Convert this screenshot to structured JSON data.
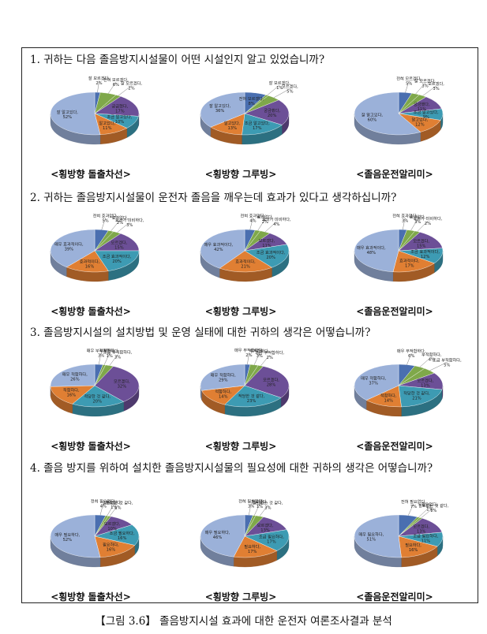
{
  "colors": [
    "#4a6fb0",
    "#7fa84a",
    "#6c4f97",
    "#3d9bb3",
    "#e07f33",
    "#9bb1d9"
  ],
  "questions": [
    {
      "text": "1. 귀하는 다음 졸음방지시설물이 어떤 시설인지 알고 있었습니까?"
    },
    {
      "text": "2. 귀하는 졸음방지시설물이 운전자 졸음을 깨우는데 효과가 있다고 생각하십니까?"
    },
    {
      "text": "3. 졸음방지시설의 설치방법 및 운영 실태에 대한 귀하의 생각은 어떻습니까?"
    },
    {
      "text": "4. 졸음 방지를 위하여 설치한 졸음방지시설물의 필요성에 대한 귀하의 생각은 어떻습니까?"
    }
  ],
  "caption": "【그림 3.6】 졸음방지시설 효과에 대한 운전자 여론조사결과 분석",
  "chart_data": [
    {
      "type": "pie",
      "title": "<횡방향 돌출차선>",
      "slices": [
        {
          "label": "잘 모르겠다,",
          "pct": "2%",
          "value": 2
        },
        {
          "label": "전혀 모르겠다,",
          "pct": "6%",
          "value": 6
        },
        {
          "label": "잘 모르겠다,",
          "pct": "2%",
          "value": 2
        },
        {
          "label": "궁금했다,",
          "pct": "17%",
          "value": 17
        },
        {
          "label": "조금 알고있다,",
          "pct": "10%",
          "value": 10
        },
        {
          "label": "알고있다,",
          "pct": "11%",
          "value": 11
        },
        {
          "label": "잘 알고있다,",
          "pct": "52%",
          "value": 52
        }
      ]
    },
    {
      "type": "pie",
      "title": "<횡방향 그루빙>",
      "slices": [
        {
          "label": "전혀 모르겠다,",
          "pct": "8%",
          "value": 8
        },
        {
          "label": "잘 모르겠다,",
          "pct": "1%",
          "value": 1
        },
        {
          "label": "모르겠다,",
          "pct": "5%",
          "value": 5
        },
        {
          "label": "궁금했다,",
          "pct": "20%",
          "value": 20
        },
        {
          "label": "조금 알고있다,",
          "pct": "17%",
          "value": 17
        },
        {
          "label": "알고있다,",
          "pct": "13%",
          "value": 13
        },
        {
          "label": "잘 알고있다,",
          "pct": "36%",
          "value": 36
        }
      ]
    },
    {
      "type": "pie",
      "title": "<졸음운전알리미>",
      "slices": [
        {
          "label": "전혀 모르겠다,",
          "pct": "5%",
          "value": 5
        },
        {
          "label": "잘 모르겠다,",
          "pct": "3%",
          "value": 3
        },
        {
          "label": "모르겠다,",
          "pct": "3%",
          "value": 3
        },
        {
          "label": "궁금했다,",
          "pct": "11%",
          "value": 11
        },
        {
          "label": "조금 알고있다,",
          "pct": "9%",
          "value": 9
        },
        {
          "label": "알고있다,",
          "pct": "12%",
          "value": 12
        },
        {
          "label": "잘 알고있다,",
          "pct": "60%",
          "value": 60
        }
      ]
    },
    {
      "type": "pie",
      "title": "<횡방향 돌출차선>",
      "slices": [
        {
          "label": "전혀 효과없다,",
          "pct": "5%",
          "value": 5
        },
        {
          "label": "효과없다,",
          "pct": "2%",
          "value": 2
        },
        {
          "label": "효과가 미비하다,",
          "pct": "3%",
          "value": 3
        },
        {
          "label": "모르겠다,",
          "pct": "15%",
          "value": 15
        },
        {
          "label": "조금 효과적이다,",
          "pct": "20%",
          "value": 20
        },
        {
          "label": "효과적이다,",
          "pct": "16%",
          "value": 16
        },
        {
          "label": "매우 효과적이다,",
          "pct": "39%",
          "value": 39
        }
      ]
    },
    {
      "type": "pie",
      "title": "<횡방향 그루빙>",
      "slices": [
        {
          "label": "전혀 효과없다,",
          "pct": "4%",
          "value": 4
        },
        {
          "label": "효과없다,",
          "pct": "2%",
          "value": 2
        },
        {
          "label": "효과가 미비하다,",
          "pct": "4%",
          "value": 4
        },
        {
          "label": "모르겠다,",
          "pct": "11%",
          "value": 11
        },
        {
          "label": "조금 효과적이다,",
          "pct": "20%",
          "value": 20
        },
        {
          "label": "효과적이다,",
          "pct": "21%",
          "value": 21
        },
        {
          "label": "매우 효과적이다,",
          "pct": "42%",
          "value": 42
        }
      ]
    },
    {
      "type": "pie",
      "title": "<졸음운전알리미>",
      "slices": [
        {
          "label": "전혀 효과없다,",
          "pct": "3%",
          "value": 3
        },
        {
          "label": "효과없다,",
          "pct": "3%",
          "value": 3
        },
        {
          "label": "효과가 미비하다,",
          "pct": "2%",
          "value": 2
        },
        {
          "label": "모르겠다,",
          "pct": "15%",
          "value": 15
        },
        {
          "label": "조금 효과적이다,",
          "pct": "12%",
          "value": 12
        },
        {
          "label": "효과적이다,",
          "pct": "17%",
          "value": 17
        },
        {
          "label": "매우 효과적이다,",
          "pct": "48%",
          "value": 48
        }
      ]
    },
    {
      "type": "pie",
      "title": "<횡방향 돌출차선>",
      "slices": [
        {
          "label": "매우 부적합하다,",
          "pct": "3%",
          "value": 3
        },
        {
          "label": "부적합하다,",
          "pct": "1%",
          "value": 1
        },
        {
          "label": "조금 부적합하다,",
          "pct": "3%",
          "value": 3
        },
        {
          "label": "모르겠다,",
          "pct": "32%",
          "value": 32
        },
        {
          "label": "적당한 것 같다,",
          "pct": "20%",
          "value": 20
        },
        {
          "label": "적합하다,",
          "pct": "16%",
          "value": 16
        },
        {
          "label": "매우 적합하다,",
          "pct": "26%",
          "value": 26
        }
      ]
    },
    {
      "type": "pie",
      "title": "<횡방향 그루빙>",
      "slices": [
        {
          "label": "매우 부적합하다,",
          "pct": "2%",
          "value": 2
        },
        {
          "label": "부적합하다,",
          "pct": "3%",
          "value": 3
        },
        {
          "label": "조금 부적합하다,",
          "pct": "2%",
          "value": 2
        },
        {
          "label": "모르겠다,",
          "pct": "28%",
          "value": 28
        },
        {
          "label": "적당한 것 같다,",
          "pct": "23%",
          "value": 23
        },
        {
          "label": "적합하다,",
          "pct": "14%",
          "value": 14
        },
        {
          "label": "매우 적합하다,",
          "pct": "29%",
          "value": 29
        }
      ]
    },
    {
      "type": "pie",
      "title": "<졸음운전알리미>",
      "slices": [
        {
          "label": "매우 부적합하다,",
          "pct": "6%",
          "value": 6
        },
        {
          "label": "부적합하다,",
          "pct": "4%",
          "value": 4
        },
        {
          "label": "조금 부적합하다,",
          "pct": "5%",
          "value": 5
        },
        {
          "label": "모르겠다,",
          "pct": "13%",
          "value": 13
        },
        {
          "label": "적당한 것 같다,",
          "pct": "21%",
          "value": 21
        },
        {
          "label": "적합하다,",
          "pct": "14%",
          "value": 14
        },
        {
          "label": "매우 적합하다,",
          "pct": "37%",
          "value": 37
        }
      ]
    },
    {
      "type": "pie",
      "title": "<횡방향 돌출차선>",
      "slices": [
        {
          "label": "전혀 필요없다,",
          "pct": "4%",
          "value": 4
        },
        {
          "label": "필요없다,",
          "pct": "1%",
          "value": 1
        },
        {
          "label": "필요없는 것 같다,",
          "pct": "1%",
          "value": 1
        },
        {
          "label": "모르겠다,",
          "pct": "10%",
          "value": 10
        },
        {
          "label": "조금 필요하다,",
          "pct": "16%",
          "value": 16
        },
        {
          "label": "필요하다,",
          "pct": "16%",
          "value": 16
        },
        {
          "label": "매우 필요하다,",
          "pct": "52%",
          "value": 52
        }
      ]
    },
    {
      "type": "pie",
      "title": "<횡방향 그루빙>",
      "slices": [
        {
          "label": "전혀 필요없다,",
          "pct": "3%",
          "value": 3
        },
        {
          "label": "필요없다,",
          "pct": "1%",
          "value": 1
        },
        {
          "label": "필요없는 것 같다,",
          "pct": "3%",
          "value": 3
        },
        {
          "label": "모르겠다,",
          "pct": "13%",
          "value": 13
        },
        {
          "label": "조금 필요하다,",
          "pct": "17%",
          "value": 17
        },
        {
          "label": "필요하다,",
          "pct": "17%",
          "value": 17
        },
        {
          "label": "매우 필요하다,",
          "pct": "46%",
          "value": 46
        }
      ]
    },
    {
      "type": "pie",
      "title": "<졸음운전알리미>",
      "slices": [
        {
          "label": "전혀 필요없다,",
          "pct": "7%",
          "value": 7
        },
        {
          "label": "필요없다,",
          "pct": "1%",
          "value": 1
        },
        {
          "label": "필요없는 것 같다,",
          "pct": "1%",
          "value": 1
        },
        {
          "label": "모르겠다,",
          "pct": "13%",
          "value": 13
        },
        {
          "label": "조금 필요하다,",
          "pct": "11%",
          "value": 11
        },
        {
          "label": "필요하다,",
          "pct": "16%",
          "value": 16
        },
        {
          "label": "매우 필요하다,",
          "pct": "51%",
          "value": 51
        }
      ]
    }
  ]
}
